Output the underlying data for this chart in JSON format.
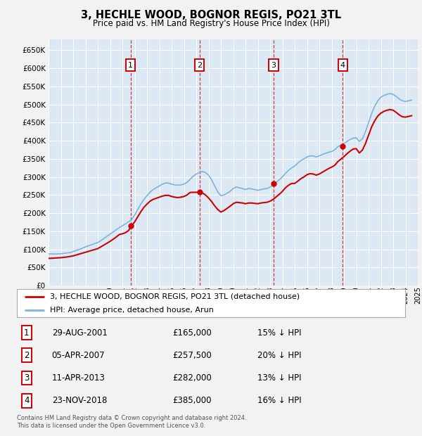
{
  "title": "3, HECHLE WOOD, BOGNOR REGIS, PO21 3TL",
  "subtitle": "Price paid vs. HM Land Registry's House Price Index (HPI)",
  "fig_bg_color": "#f2f2f2",
  "plot_bg_color": "#dce9f5",
  "grid_color": "#ffffff",
  "hpi_color": "#7fb3d9",
  "price_color": "#cc0000",
  "ylim": [
    0,
    680000
  ],
  "yticks": [
    0,
    50000,
    100000,
    150000,
    200000,
    250000,
    300000,
    350000,
    400000,
    450000,
    500000,
    550000,
    600000,
    650000
  ],
  "x_start_year": 1995,
  "x_end_year": 2025,
  "legend_label_price": "3, HECHLE WOOD, BOGNOR REGIS, PO21 3TL (detached house)",
  "legend_label_hpi": "HPI: Average price, detached house, Arun",
  "transactions": [
    {
      "num": 1,
      "date": "29-AUG-2001",
      "price": 165000,
      "pct": "15%",
      "year": 2001.66
    },
    {
      "num": 2,
      "date": "05-APR-2007",
      "price": 257500,
      "pct": "20%",
      "year": 2007.27
    },
    {
      "num": 3,
      "date": "11-APR-2013",
      "price": 282000,
      "pct": "13%",
      "year": 2013.28
    },
    {
      "num": 4,
      "date": "23-NOV-2018",
      "price": 385000,
      "pct": "16%",
      "year": 2018.9
    }
  ],
  "footer": "Contains HM Land Registry data © Crown copyright and database right 2024.\nThis data is licensed under the Open Government Licence v3.0.",
  "hpi_data_x": [
    1995.0,
    1995.25,
    1995.5,
    1995.75,
    1996.0,
    1996.25,
    1996.5,
    1996.75,
    1997.0,
    1997.25,
    1997.5,
    1997.75,
    1998.0,
    1998.25,
    1998.5,
    1998.75,
    1999.0,
    1999.25,
    1999.5,
    1999.75,
    2000.0,
    2000.25,
    2000.5,
    2000.75,
    2001.0,
    2001.25,
    2001.5,
    2001.75,
    2002.0,
    2002.25,
    2002.5,
    2002.75,
    2003.0,
    2003.25,
    2003.5,
    2003.75,
    2004.0,
    2004.25,
    2004.5,
    2004.75,
    2005.0,
    2005.25,
    2005.5,
    2005.75,
    2006.0,
    2006.25,
    2006.5,
    2006.75,
    2007.0,
    2007.25,
    2007.5,
    2007.75,
    2008.0,
    2008.25,
    2008.5,
    2008.75,
    2009.0,
    2009.25,
    2009.5,
    2009.75,
    2010.0,
    2010.25,
    2010.5,
    2010.75,
    2011.0,
    2011.25,
    2011.5,
    2011.75,
    2012.0,
    2012.25,
    2012.5,
    2012.75,
    2013.0,
    2013.25,
    2013.5,
    2013.75,
    2014.0,
    2014.25,
    2014.5,
    2014.75,
    2015.0,
    2015.25,
    2015.5,
    2015.75,
    2016.0,
    2016.25,
    2016.5,
    2016.75,
    2017.0,
    2017.25,
    2017.5,
    2017.75,
    2018.0,
    2018.25,
    2018.5,
    2018.75,
    2019.0,
    2019.25,
    2019.5,
    2019.75,
    2020.0,
    2020.25,
    2020.5,
    2020.75,
    2021.0,
    2021.25,
    2021.5,
    2021.75,
    2022.0,
    2022.25,
    2022.5,
    2022.75,
    2023.0,
    2023.25,
    2023.5,
    2023.75,
    2024.0,
    2024.25,
    2024.5
  ],
  "hpi_data_y": [
    88000,
    87500,
    87000,
    87500,
    88000,
    89000,
    90000,
    91000,
    94000,
    97000,
    100000,
    103000,
    107000,
    110000,
    113000,
    116000,
    119000,
    124000,
    130000,
    136000,
    142000,
    148000,
    154000,
    160000,
    165000,
    170000,
    176000,
    182000,
    195000,
    210000,
    225000,
    238000,
    248000,
    258000,
    265000,
    270000,
    275000,
    280000,
    283000,
    283000,
    280000,
    278000,
    277000,
    278000,
    280000,
    285000,
    293000,
    302000,
    308000,
    312000,
    315000,
    312000,
    305000,
    292000,
    275000,
    258000,
    248000,
    250000,
    255000,
    260000,
    268000,
    272000,
    270000,
    268000,
    265000,
    268000,
    267000,
    265000,
    263000,
    265000,
    267000,
    268000,
    272000,
    278000,
    285000,
    292000,
    300000,
    310000,
    318000,
    325000,
    330000,
    338000,
    345000,
    350000,
    355000,
    358000,
    358000,
    355000,
    358000,
    362000,
    365000,
    368000,
    370000,
    375000,
    383000,
    388000,
    392000,
    398000,
    403000,
    407000,
    408000,
    398000,
    405000,
    425000,
    450000,
    475000,
    495000,
    510000,
    520000,
    525000,
    528000,
    530000,
    528000,
    522000,
    515000,
    510000,
    508000,
    510000,
    512000
  ],
  "price_data_x": [
    1995.0,
    1995.25,
    1995.5,
    1995.75,
    1996.0,
    1996.25,
    1996.5,
    1996.75,
    1997.0,
    1997.25,
    1997.5,
    1997.75,
    1998.0,
    1998.25,
    1998.5,
    1998.75,
    1999.0,
    1999.25,
    1999.5,
    1999.75,
    2000.0,
    2000.25,
    2000.5,
    2000.75,
    2001.0,
    2001.25,
    2001.5,
    2001.75,
    2002.0,
    2002.25,
    2002.5,
    2002.75,
    2003.0,
    2003.25,
    2003.5,
    2003.75,
    2004.0,
    2004.25,
    2004.5,
    2004.75,
    2005.0,
    2005.25,
    2005.5,
    2005.75,
    2006.0,
    2006.25,
    2006.5,
    2006.75,
    2007.0,
    2007.25,
    2007.5,
    2007.75,
    2008.0,
    2008.25,
    2008.5,
    2008.75,
    2009.0,
    2009.25,
    2009.5,
    2009.75,
    2010.0,
    2010.25,
    2010.5,
    2010.75,
    2011.0,
    2011.25,
    2011.5,
    2011.75,
    2012.0,
    2012.25,
    2012.5,
    2012.75,
    2013.0,
    2013.25,
    2013.5,
    2013.75,
    2014.0,
    2014.25,
    2014.5,
    2014.75,
    2015.0,
    2015.25,
    2015.5,
    2015.75,
    2016.0,
    2016.25,
    2016.5,
    2016.75,
    2017.0,
    2017.25,
    2017.5,
    2017.75,
    2018.0,
    2018.25,
    2018.5,
    2018.75,
    2019.0,
    2019.25,
    2019.5,
    2019.75,
    2020.0,
    2020.25,
    2020.5,
    2020.75,
    2021.0,
    2021.25,
    2021.5,
    2021.75,
    2022.0,
    2022.25,
    2022.5,
    2022.75,
    2023.0,
    2023.25,
    2023.5,
    2023.75,
    2024.0,
    2024.25,
    2024.5
  ],
  "price_data_y": [
    75000,
    75500,
    76000,
    76500,
    77000,
    78000,
    79000,
    80500,
    82000,
    84500,
    87000,
    89500,
    92000,
    94500,
    97000,
    99500,
    102000,
    107000,
    112000,
    117000,
    122000,
    128000,
    134000,
    141000,
    143000,
    146000,
    152000,
    165000,
    176000,
    190000,
    204000,
    216000,
    225000,
    233000,
    238000,
    241000,
    244000,
    247000,
    249000,
    249000,
    246000,
    244000,
    243000,
    244000,
    246000,
    250000,
    257000,
    257500,
    257500,
    257500,
    256000,
    250000,
    242000,
    232000,
    220000,
    210000,
    203000,
    207000,
    213000,
    219000,
    226000,
    230000,
    229000,
    228000,
    226000,
    228000,
    228000,
    227000,
    226000,
    228000,
    229000,
    230000,
    233000,
    238000,
    245000,
    252000,
    260000,
    270000,
    277000,
    282000,
    282000,
    288000,
    295000,
    300000,
    306000,
    309000,
    308000,
    305000,
    308000,
    313000,
    318000,
    323000,
    327000,
    332000,
    342000,
    349000,
    356000,
    364000,
    371000,
    377000,
    378000,
    366000,
    374000,
    392000,
    415000,
    438000,
    455000,
    468000,
    476000,
    481000,
    484000,
    486000,
    484000,
    478000,
    471000,
    466000,
    465000,
    467000,
    469000
  ],
  "transaction_points": [
    {
      "year": 2001.66,
      "price": 165000
    },
    {
      "year": 2007.27,
      "price": 257500
    },
    {
      "year": 2013.28,
      "price": 282000
    },
    {
      "year": 2018.9,
      "price": 385000
    }
  ]
}
